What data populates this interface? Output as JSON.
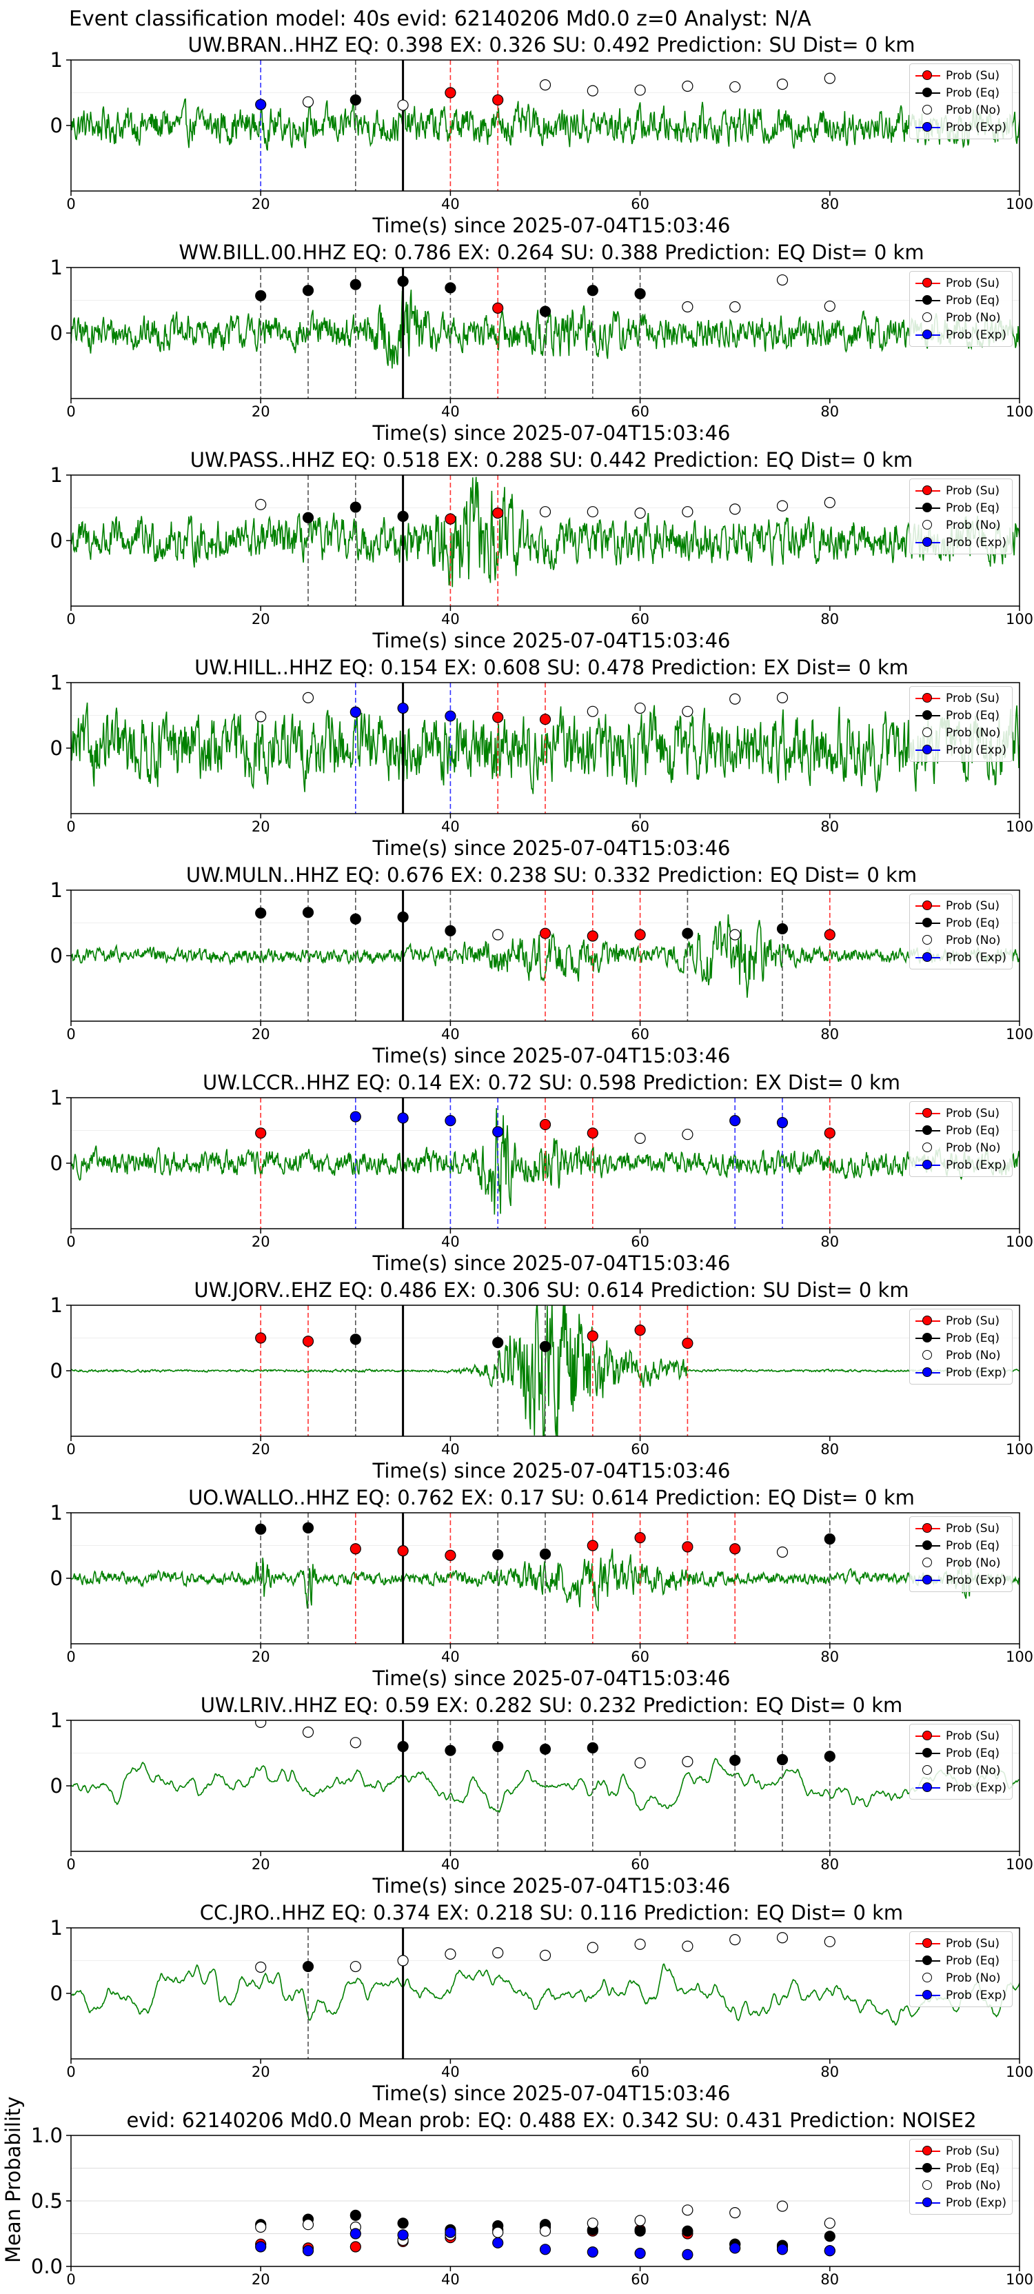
{
  "suptitle": "Event classification model: 40s evid: 62140206 Md0.0 z=0 Analyst: N/A",
  "colors": {
    "waveform": "#008000",
    "su": "#ff0000",
    "eq": "#000000",
    "no": "#ffffff",
    "exp": "#0000ff",
    "eq_line": "#555555",
    "su_line": "#ff3333",
    "exp_line": "#3333ff",
    "origin_line": "#000000"
  },
  "legend": [
    "Prob (Su)",
    "Prob (Eq)",
    "Prob (No)",
    "Prob (Exp)"
  ],
  "xlabel": "Time(s) since 2025-07-04T15:03:46",
  "chart_data": [
    {
      "type": "line+scatter",
      "title": "UW.BRAN..HHZ   EQ: 0.398  EX: 0.326  SU: 0.492   Prediction: SU    Dist= 0 km",
      "xlabel": "Time(s) since 2025-07-04T15:03:46",
      "xlim": [
        0,
        100
      ],
      "ylim": [
        -1,
        1
      ],
      "xticks": [
        0,
        20,
        40,
        60,
        80,
        100
      ],
      "yticks": [
        0,
        1
      ],
      "origin_time": 35,
      "waveform": {
        "amplitude": 0.3,
        "envelope": "uniform"
      },
      "windows": [
        {
          "t": 20,
          "pred": "exp",
          "prob": 0.32
        },
        {
          "t": 25,
          "pred": "no",
          "prob": 0.36
        },
        {
          "t": 30,
          "pred": "eq",
          "prob": 0.39
        },
        {
          "t": 35,
          "pred": "no",
          "prob": 0.31
        },
        {
          "t": 40,
          "pred": "su",
          "prob": 0.5
        },
        {
          "t": 45,
          "pred": "su",
          "prob": 0.39
        },
        {
          "t": 50,
          "pred": "no",
          "prob": 0.62
        },
        {
          "t": 55,
          "pred": "no",
          "prob": 0.53
        },
        {
          "t": 60,
          "pred": "no",
          "prob": 0.54
        },
        {
          "t": 65,
          "pred": "no",
          "prob": 0.6
        },
        {
          "t": 70,
          "pred": "no",
          "prob": 0.59
        },
        {
          "t": 75,
          "pred": "no",
          "prob": 0.63
        },
        {
          "t": 80,
          "pred": "no",
          "prob": 0.72
        }
      ]
    },
    {
      "type": "line+scatter",
      "title": "WW.BILL.00.HHZ   EQ: 0.786  EX: 0.264  SU: 0.388   Prediction: EQ    Dist= 0 km",
      "xlabel": "Time(s) since 2025-07-04T15:03:46",
      "xlim": [
        0,
        100
      ],
      "ylim": [
        -1,
        1
      ],
      "xticks": [
        0,
        20,
        40,
        60,
        80,
        100
      ],
      "yticks": [
        0,
        1
      ],
      "origin_time": 35,
      "waveform": {
        "amplitude": 0.28,
        "envelope": "burst35"
      },
      "windows": [
        {
          "t": 20,
          "pred": "eq",
          "prob": 0.57
        },
        {
          "t": 25,
          "pred": "eq",
          "prob": 0.65
        },
        {
          "t": 30,
          "pred": "eq",
          "prob": 0.74
        },
        {
          "t": 35,
          "pred": "eq",
          "prob": 0.79
        },
        {
          "t": 40,
          "pred": "eq",
          "prob": 0.69
        },
        {
          "t": 45,
          "pred": "su",
          "prob": 0.38
        },
        {
          "t": 50,
          "pred": "eq",
          "prob": 0.33
        },
        {
          "t": 55,
          "pred": "eq",
          "prob": 0.65
        },
        {
          "t": 60,
          "pred": "eq",
          "prob": 0.6
        },
        {
          "t": 65,
          "pred": "no",
          "prob": 0.4
        },
        {
          "t": 70,
          "pred": "no",
          "prob": 0.4
        },
        {
          "t": 75,
          "pred": "no",
          "prob": 0.81
        },
        {
          "t": 80,
          "pred": "no",
          "prob": 0.41
        }
      ]
    },
    {
      "type": "line+scatter",
      "title": "UW.PASS..HHZ   EQ: 0.518  EX: 0.288  SU: 0.442   Prediction: EQ    Dist= 0 km",
      "xlabel": "Time(s) since 2025-07-04T15:03:46",
      "xlim": [
        0,
        100
      ],
      "ylim": [
        -1,
        1
      ],
      "xticks": [
        0,
        20,
        40,
        60,
        80,
        100
      ],
      "yticks": [
        0,
        1
      ],
      "origin_time": 35,
      "waveform": {
        "amplitude": 0.35,
        "envelope": "burst43"
      },
      "windows": [
        {
          "t": 20,
          "pred": "no",
          "prob": 0.55
        },
        {
          "t": 25,
          "pred": "eq",
          "prob": 0.35
        },
        {
          "t": 30,
          "pred": "eq",
          "prob": 0.51
        },
        {
          "t": 35,
          "pred": "eq",
          "prob": 0.37
        },
        {
          "t": 40,
          "pred": "su",
          "prob": 0.33
        },
        {
          "t": 45,
          "pred": "su",
          "prob": 0.42
        },
        {
          "t": 50,
          "pred": "no",
          "prob": 0.44
        },
        {
          "t": 55,
          "pred": "no",
          "prob": 0.44
        },
        {
          "t": 60,
          "pred": "no",
          "prob": 0.42
        },
        {
          "t": 65,
          "pred": "no",
          "prob": 0.44
        },
        {
          "t": 70,
          "pred": "no",
          "prob": 0.48
        },
        {
          "t": 75,
          "pred": "no",
          "prob": 0.53
        },
        {
          "t": 80,
          "pred": "no",
          "prob": 0.58
        }
      ]
    },
    {
      "type": "line+scatter",
      "title": "UW.HILL..HHZ   EQ: 0.154  EX: 0.608  SU: 0.478   Prediction: EX    Dist= 0 km",
      "xlabel": "Time(s) since 2025-07-04T15:03:46",
      "xlim": [
        0,
        100
      ],
      "ylim": [
        -1,
        1
      ],
      "xticks": [
        0,
        20,
        40,
        60,
        80,
        100
      ],
      "yticks": [
        0,
        1
      ],
      "origin_time": 35,
      "waveform": {
        "amplitude": 0.55,
        "envelope": "uniform"
      },
      "windows": [
        {
          "t": 20,
          "pred": "no",
          "prob": 0.48
        },
        {
          "t": 25,
          "pred": "no",
          "prob": 0.77
        },
        {
          "t": 30,
          "pred": "exp",
          "prob": 0.55
        },
        {
          "t": 35,
          "pred": "exp",
          "prob": 0.61
        },
        {
          "t": 40,
          "pred": "exp",
          "prob": 0.49
        },
        {
          "t": 45,
          "pred": "su",
          "prob": 0.47
        },
        {
          "t": 50,
          "pred": "su",
          "prob": 0.44
        },
        {
          "t": 55,
          "pred": "no",
          "prob": 0.56
        },
        {
          "t": 60,
          "pred": "no",
          "prob": 0.61
        },
        {
          "t": 65,
          "pred": "no",
          "prob": 0.56
        },
        {
          "t": 70,
          "pred": "no",
          "prob": 0.75
        },
        {
          "t": 75,
          "pred": "no",
          "prob": 0.77
        }
      ]
    },
    {
      "type": "line+scatter",
      "title": "UW.MULN..HHZ   EQ: 0.676  EX: 0.238  SU: 0.332   Prediction: EQ    Dist= 0 km",
      "xlabel": "Time(s) since 2025-07-04T15:03:46",
      "xlim": [
        0,
        100
      ],
      "ylim": [
        -1,
        1
      ],
      "xticks": [
        0,
        20,
        40,
        60,
        80,
        100
      ],
      "yticks": [
        0,
        1
      ],
      "origin_time": 35,
      "waveform": {
        "amplitude": 0.12,
        "envelope": "burst70"
      },
      "windows": [
        {
          "t": 20,
          "pred": "eq",
          "prob": 0.65
        },
        {
          "t": 25,
          "pred": "eq",
          "prob": 0.66
        },
        {
          "t": 30,
          "pred": "eq",
          "prob": 0.56
        },
        {
          "t": 35,
          "pred": "eq",
          "prob": 0.59
        },
        {
          "t": 40,
          "pred": "eq",
          "prob": 0.38
        },
        {
          "t": 45,
          "pred": "no",
          "prob": 0.32
        },
        {
          "t": 50,
          "pred": "su",
          "prob": 0.34
        },
        {
          "t": 55,
          "pred": "su",
          "prob": 0.3
        },
        {
          "t": 60,
          "pred": "su",
          "prob": 0.32
        },
        {
          "t": 65,
          "pred": "eq",
          "prob": 0.34
        },
        {
          "t": 70,
          "pred": "no",
          "prob": 0.32
        },
        {
          "t": 75,
          "pred": "eq",
          "prob": 0.41
        },
        {
          "t": 80,
          "pred": "su",
          "prob": 0.32
        }
      ]
    },
    {
      "type": "line+scatter",
      "title": "UW.LCCR..HHZ   EQ: 0.14  EX: 0.72  SU: 0.598   Prediction: EX    Dist= 0 km",
      "xlabel": "Time(s) since 2025-07-04T15:03:46",
      "xlim": [
        0,
        100
      ],
      "ylim": [
        -1,
        1
      ],
      "xticks": [
        0,
        20,
        40,
        60,
        80,
        100
      ],
      "yticks": [
        0,
        1
      ],
      "origin_time": 35,
      "waveform": {
        "amplitude": 0.2,
        "envelope": "burst45"
      },
      "windows": [
        {
          "t": 20,
          "pred": "su",
          "prob": 0.46
        },
        {
          "t": 30,
          "pred": "exp",
          "prob": 0.71
        },
        {
          "t": 35,
          "pred": "exp",
          "prob": 0.69
        },
        {
          "t": 40,
          "pred": "exp",
          "prob": 0.65
        },
        {
          "t": 45,
          "pred": "exp",
          "prob": 0.48
        },
        {
          "t": 50,
          "pred": "su",
          "prob": 0.59
        },
        {
          "t": 55,
          "pred": "su",
          "prob": 0.46
        },
        {
          "t": 60,
          "pred": "no",
          "prob": 0.38
        },
        {
          "t": 65,
          "pred": "no",
          "prob": 0.44
        },
        {
          "t": 70,
          "pred": "exp",
          "prob": 0.65
        },
        {
          "t": 75,
          "pred": "exp",
          "prob": 0.62
        },
        {
          "t": 80,
          "pred": "su",
          "prob": 0.46
        }
      ]
    },
    {
      "type": "line+scatter",
      "title": "UW.JORV..EHZ   EQ: 0.486  EX: 0.306  SU: 0.614   Prediction: SU    Dist= 0 km",
      "xlabel": "Time(s) since 2025-07-04T15:03:46",
      "xlim": [
        0,
        100
      ],
      "ylim": [
        -1,
        1
      ],
      "xticks": [
        0,
        20,
        40,
        60,
        80,
        100
      ],
      "yticks": [
        0,
        1
      ],
      "origin_time": 35,
      "waveform": {
        "amplitude": 0.02,
        "envelope": "burst52"
      },
      "windows": [
        {
          "t": 20,
          "pred": "su",
          "prob": 0.5
        },
        {
          "t": 25,
          "pred": "su",
          "prob": 0.45
        },
        {
          "t": 30,
          "pred": "eq",
          "prob": 0.48
        },
        {
          "t": 45,
          "pred": "eq",
          "prob": 0.43
        },
        {
          "t": 50,
          "pred": "eq",
          "prob": 0.37
        },
        {
          "t": 55,
          "pred": "su",
          "prob": 0.53
        },
        {
          "t": 60,
          "pred": "su",
          "prob": 0.62
        },
        {
          "t": 65,
          "pred": "su",
          "prob": 0.42
        }
      ]
    },
    {
      "type": "line+scatter",
      "title": "UO.WALLO..HHZ   EQ: 0.762  EX: 0.17  SU: 0.614   Prediction: EQ    Dist= 0 km",
      "xlabel": "Time(s) since 2025-07-04T15:03:46",
      "xlim": [
        0,
        100
      ],
      "ylim": [
        -1,
        1
      ],
      "xticks": [
        0,
        20,
        40,
        60,
        80,
        100
      ],
      "yticks": [
        0,
        1
      ],
      "origin_time": 35,
      "waveform": {
        "amplitude": 0.1,
        "envelope": "spikes"
      },
      "windows": [
        {
          "t": 20,
          "pred": "eq",
          "prob": 0.75
        },
        {
          "t": 25,
          "pred": "eq",
          "prob": 0.77
        },
        {
          "t": 30,
          "pred": "su",
          "prob": 0.45
        },
        {
          "t": 35,
          "pred": "su",
          "prob": 0.42
        },
        {
          "t": 40,
          "pred": "su",
          "prob": 0.35
        },
        {
          "t": 45,
          "pred": "eq",
          "prob": 0.36
        },
        {
          "t": 50,
          "pred": "eq",
          "prob": 0.37
        },
        {
          "t": 55,
          "pred": "su",
          "prob": 0.5
        },
        {
          "t": 60,
          "pred": "su",
          "prob": 0.62
        },
        {
          "t": 65,
          "pred": "su",
          "prob": 0.48
        },
        {
          "t": 70,
          "pred": "su",
          "prob": 0.45
        },
        {
          "t": 75,
          "pred": "no",
          "prob": 0.4
        },
        {
          "t": 80,
          "pred": "eq",
          "prob": 0.6
        }
      ]
    },
    {
      "type": "line+scatter",
      "title": "UW.LRIV..HHZ   EQ: 0.59  EX: 0.282  SU: 0.232   Prediction: EQ    Dist= 0 km",
      "xlabel": "Time(s) since 2025-07-04T15:03:46",
      "xlim": [
        0,
        100
      ],
      "ylim": [
        -1,
        1
      ],
      "xticks": [
        0,
        20,
        40,
        60,
        80,
        100
      ],
      "yticks": [
        0,
        1
      ],
      "origin_time": 35,
      "waveform": {
        "amplitude": 0.5,
        "envelope": "slow"
      },
      "windows": [
        {
          "t": 20,
          "pred": "no",
          "prob": 0.97
        },
        {
          "t": 25,
          "pred": "no",
          "prob": 0.82
        },
        {
          "t": 30,
          "pred": "no",
          "prob": 0.66
        },
        {
          "t": 35,
          "pred": "eq",
          "prob": 0.6
        },
        {
          "t": 40,
          "pred": "eq",
          "prob": 0.54
        },
        {
          "t": 45,
          "pred": "eq",
          "prob": 0.6
        },
        {
          "t": 50,
          "pred": "eq",
          "prob": 0.56
        },
        {
          "t": 55,
          "pred": "eq",
          "prob": 0.58
        },
        {
          "t": 60,
          "pred": "no",
          "prob": 0.35
        },
        {
          "t": 65,
          "pred": "no",
          "prob": 0.37
        },
        {
          "t": 70,
          "pred": "eq",
          "prob": 0.39
        },
        {
          "t": 75,
          "pred": "eq",
          "prob": 0.4
        },
        {
          "t": 80,
          "pred": "eq",
          "prob": 0.45
        }
      ]
    },
    {
      "type": "line+scatter",
      "title": "CC.JRO..HHZ   EQ: 0.374  EX: 0.218  SU: 0.116   Prediction: EQ    Dist= 0 km",
      "xlabel": "Time(s) since 2025-07-04T15:03:46",
      "xlim": [
        0,
        100
      ],
      "ylim": [
        -1,
        1
      ],
      "xticks": [
        0,
        20,
        40,
        60,
        80,
        100
      ],
      "yticks": [
        0,
        1
      ],
      "origin_time": 35,
      "waveform": {
        "amplitude": 0.55,
        "envelope": "slow"
      },
      "windows": [
        {
          "t": 20,
          "pred": "no",
          "prob": 0.4
        },
        {
          "t": 25,
          "pred": "eq",
          "prob": 0.41
        },
        {
          "t": 30,
          "pred": "no",
          "prob": 0.41
        },
        {
          "t": 35,
          "pred": "no",
          "prob": 0.5
        },
        {
          "t": 40,
          "pred": "no",
          "prob": 0.6
        },
        {
          "t": 45,
          "pred": "no",
          "prob": 0.62
        },
        {
          "t": 50,
          "pred": "no",
          "prob": 0.58
        },
        {
          "t": 55,
          "pred": "no",
          "prob": 0.7
        },
        {
          "t": 60,
          "pred": "no",
          "prob": 0.75
        },
        {
          "t": 65,
          "pred": "no",
          "prob": 0.72
        },
        {
          "t": 70,
          "pred": "no",
          "prob": 0.82
        },
        {
          "t": 75,
          "pred": "no",
          "prob": 0.85
        },
        {
          "t": 80,
          "pred": "no",
          "prob": 0.79
        }
      ]
    },
    {
      "type": "scatter",
      "title": "evid: 62140206  Md0.0   Mean prob:   EQ: 0.488  EX: 0.342  SU: 0.431   Prediction: NOISE2",
      "ylabel": "Mean Probability",
      "xlim": [
        0,
        100
      ],
      "ylim": [
        0,
        1
      ],
      "xticks": [
        0,
        20,
        40,
        60,
        80,
        100
      ],
      "yticks": [
        0.0,
        0.5,
        1.0
      ],
      "ytick_labels": [
        "0.0",
        "0.5",
        "1.0"
      ],
      "grid": "horizontal",
      "x": [
        20,
        25,
        30,
        35,
        40,
        45,
        50,
        55,
        60,
        65,
        70,
        75,
        80
      ],
      "series": [
        {
          "name": "Prob (Su)",
          "key": "su",
          "values": [
            0.17,
            0.14,
            0.15,
            0.19,
            0.22,
            0.28,
            0.3,
            0.27,
            0.28,
            0.25,
            0.17,
            0.15,
            0.12
          ]
        },
        {
          "name": "Prob (Eq)",
          "key": "eq",
          "values": [
            0.32,
            0.36,
            0.39,
            0.33,
            0.28,
            0.31,
            0.32,
            0.28,
            0.27,
            0.27,
            0.17,
            0.16,
            0.23
          ]
        },
        {
          "name": "Prob (No)",
          "key": "no",
          "values": [
            0.3,
            0.32,
            0.3,
            0.2,
            0.24,
            0.26,
            0.27,
            0.33,
            0.35,
            0.43,
            0.41,
            0.46,
            0.33
          ]
        },
        {
          "name": "Prob (Exp)",
          "key": "exp",
          "values": [
            0.15,
            0.12,
            0.25,
            0.24,
            0.26,
            0.18,
            0.13,
            0.11,
            0.1,
            0.09,
            0.14,
            0.13,
            0.12
          ]
        }
      ]
    }
  ]
}
